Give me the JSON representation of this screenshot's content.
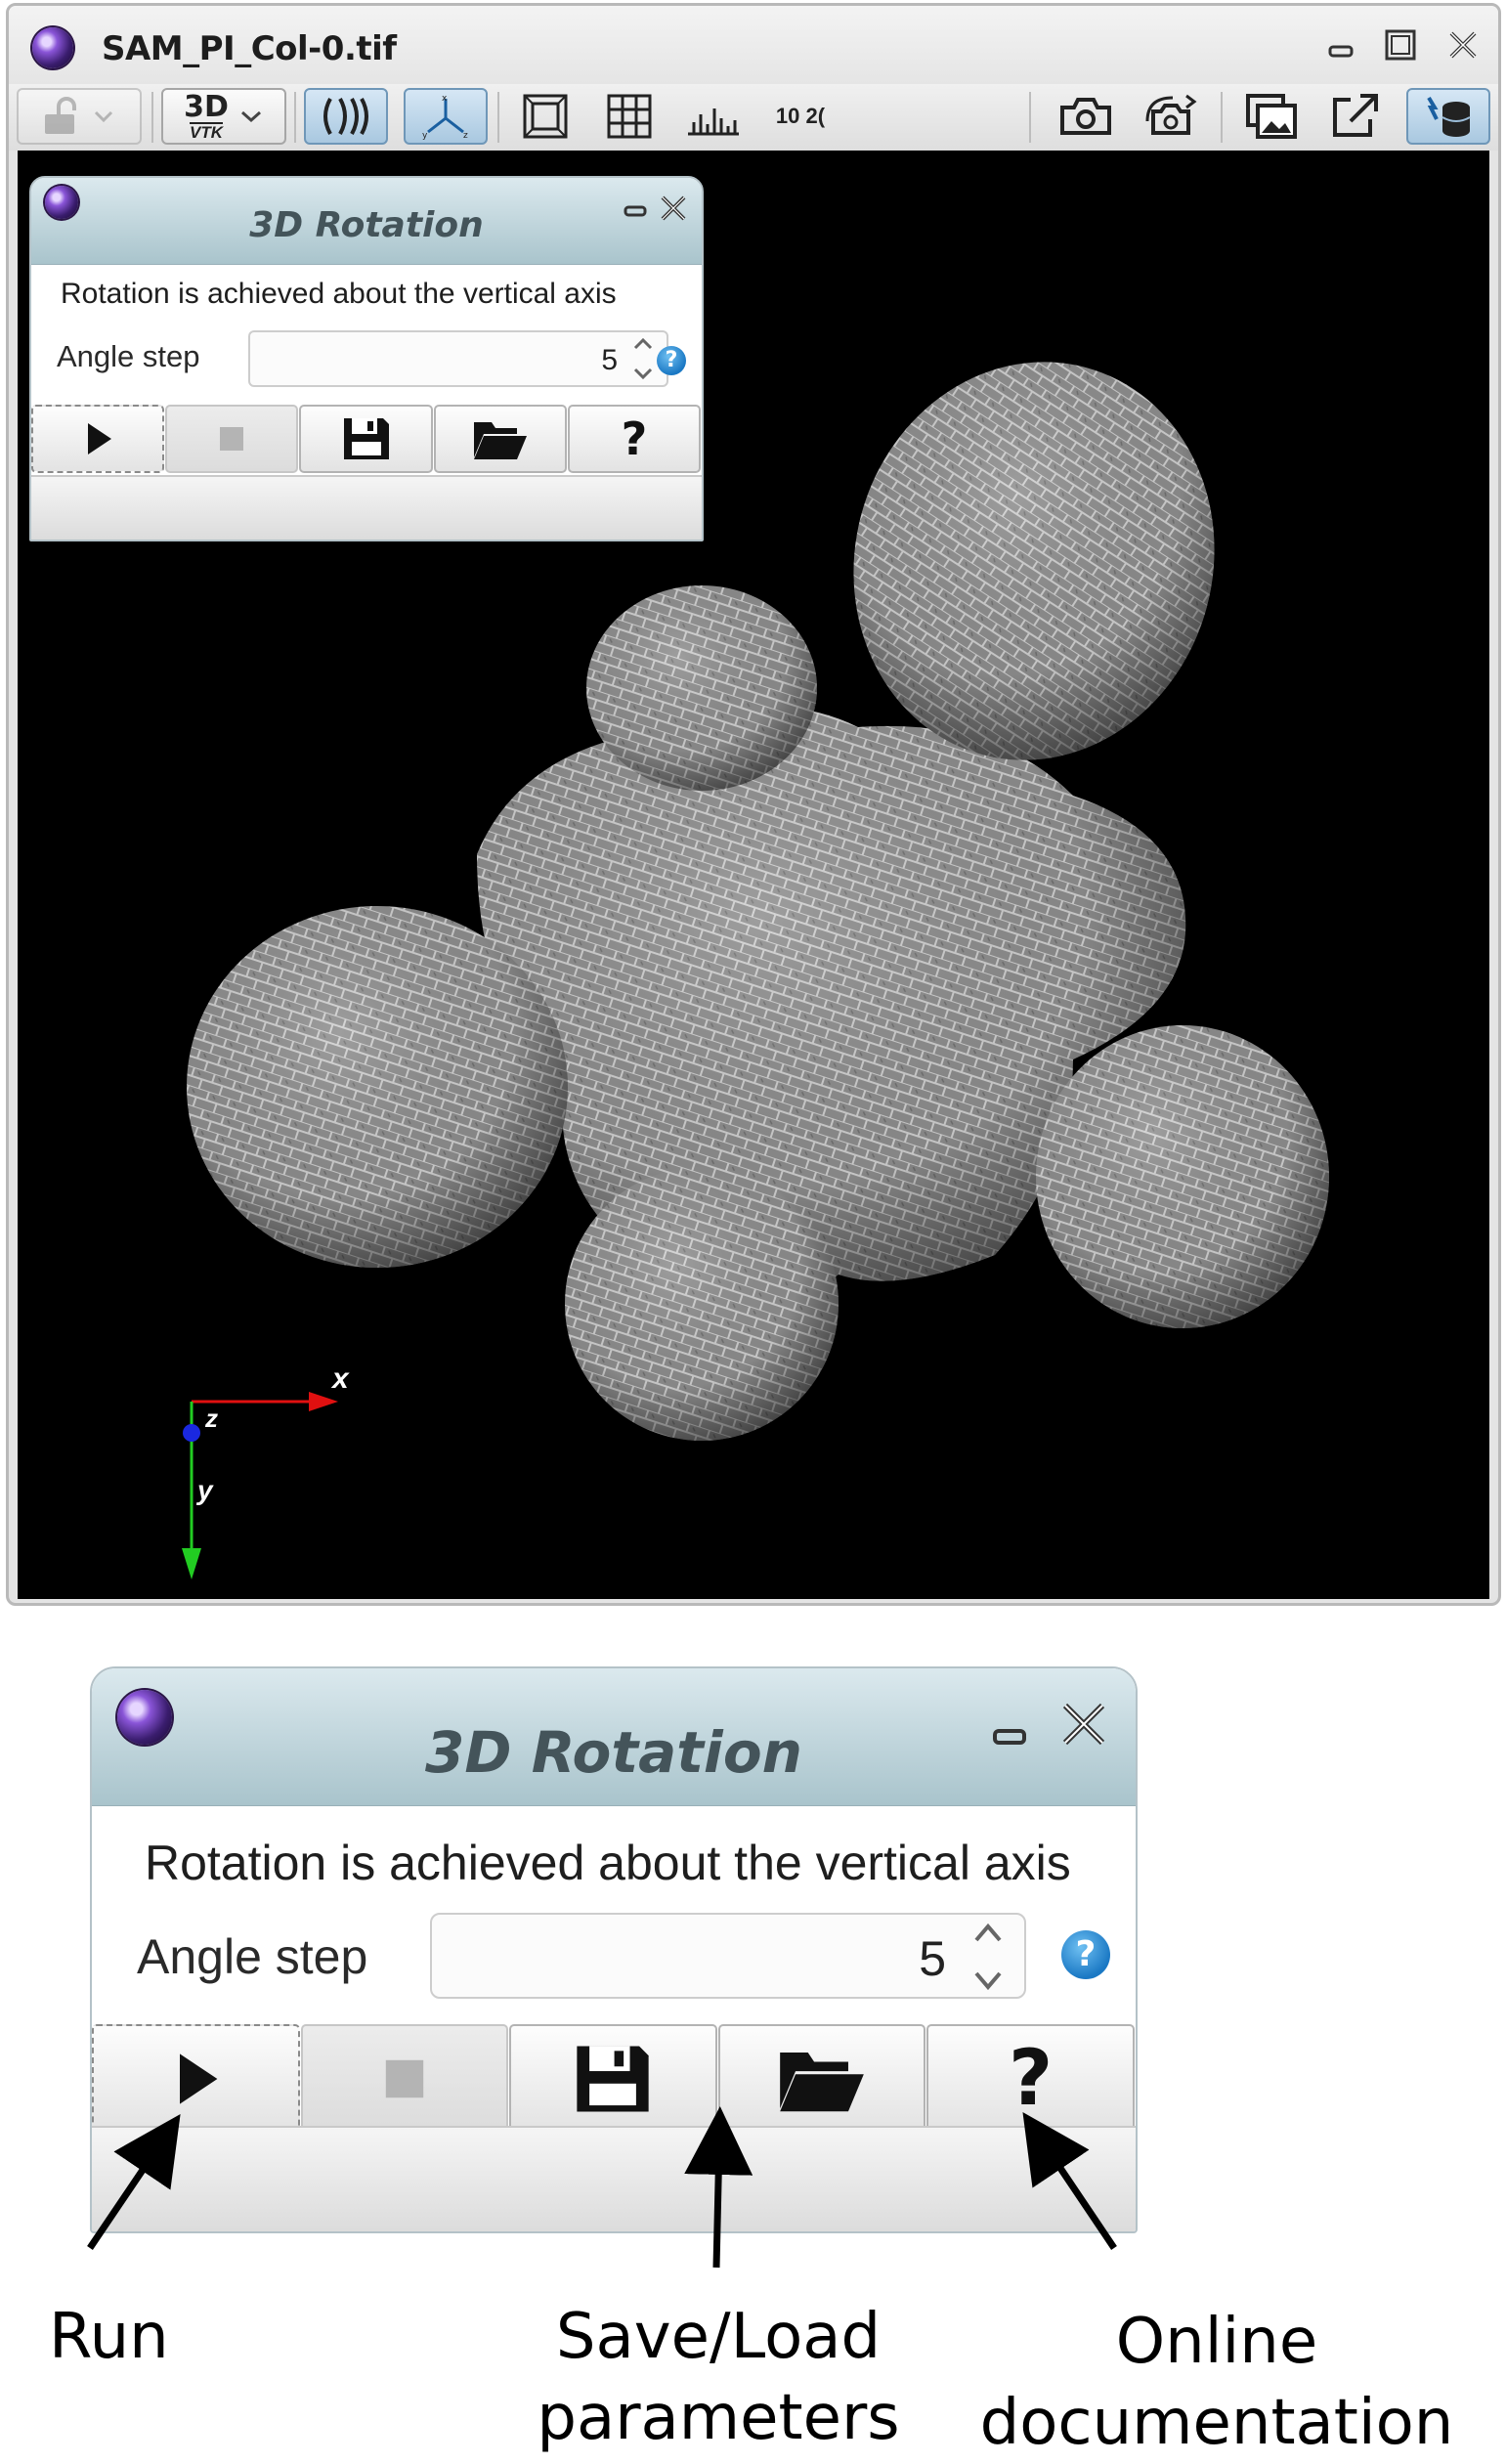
{
  "window": {
    "title": "SAM_PI_Col-0.tif",
    "controls": [
      "minimize",
      "maximize",
      "close"
    ]
  },
  "toolbar": {
    "view_mode_label": "3D",
    "view_mode_sublabel": "VTK",
    "info_label": "10 2("
  },
  "axes": {
    "x": "x",
    "y": "y",
    "z": "z"
  },
  "dialog": {
    "title": "3D Rotation",
    "description": "Rotation is achieved about the vertical axis",
    "angle_label": "Angle step",
    "angle_value": "5",
    "help_icon": "?",
    "buttons": [
      {
        "name": "run",
        "icon": "play-icon"
      },
      {
        "name": "stop",
        "icon": "stop-icon"
      },
      {
        "name": "save",
        "icon": "floppy-disk-icon"
      },
      {
        "name": "load",
        "icon": "folder-open-icon"
      },
      {
        "name": "help",
        "icon": "question-mark-icon",
        "label": "?"
      }
    ]
  },
  "annotations": {
    "run": "Run",
    "save_load": [
      "Save/Load",
      "parameters"
    ],
    "online_doc": [
      "Online",
      "documentation"
    ]
  },
  "colors": {
    "x_axis": "#e01010",
    "y_axis": "#22cc22",
    "z_axis": "#1a28e0",
    "active_button": "#a9c8e0",
    "dialog_title": "#a9c4cc"
  }
}
